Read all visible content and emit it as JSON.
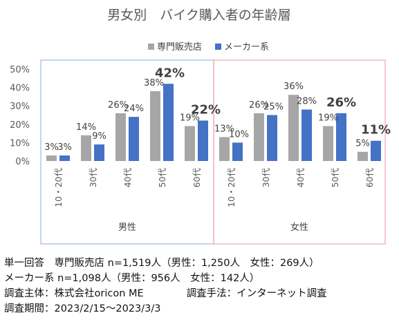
{
  "chart_data": {
    "type": "bar",
    "title": "男女別　バイク購入者の年齢層",
    "legend_position": "top",
    "ylim": [
      0,
      50
    ],
    "yticks": [
      "0%",
      "10%",
      "20%",
      "30%",
      "40%",
      "50%"
    ],
    "groups": [
      {
        "name": "男性",
        "categories": [
          "10・20代",
          "30代",
          "40代",
          "50代",
          "60代"
        ]
      },
      {
        "name": "女性",
        "categories": [
          "10・20代",
          "30代",
          "40代",
          "50代",
          "60代"
        ]
      }
    ],
    "series": [
      {
        "name": "専門販売店",
        "color": "#a6a6a6",
        "values": [
          3,
          14,
          26,
          38,
          19,
          13,
          26,
          36,
          19,
          5
        ],
        "labels": [
          "3%",
          "14%",
          "26%",
          "38%",
          "19%",
          "13%",
          "26%",
          "36%",
          "19%",
          "5%"
        ]
      },
      {
        "name": "メーカー系",
        "color": "#4472c4",
        "values": [
          3,
          9,
          24,
          42,
          22,
          10,
          25,
          28,
          26,
          11
        ],
        "labels": [
          "3%",
          "9%",
          "24%",
          "42%",
          "22%",
          "10%",
          "25%",
          "28%",
          "26%",
          "11%"
        ]
      }
    ],
    "emphasized_labels": [
      {
        "series": 1,
        "index": 3
      },
      {
        "series": 1,
        "index": 4
      },
      {
        "series": 1,
        "index": 8
      },
      {
        "series": 1,
        "index": 9
      }
    ],
    "group_box_colors": [
      "#b4c7e7",
      "#f4b6bf"
    ],
    "grid": false
  },
  "notes": {
    "line1": "単一回答　専門販売店 n=1,519人（男性：1,250人　女性：269人）",
    "line2": "メーカー系 n=1,098人（男性：956人　女性：142人）",
    "line3a": "調査主体：株式会社oricon ME",
    "line3b": "調査手法：インターネット調査",
    "line4": "調査期間：2023/2/15～2023/3/3"
  }
}
